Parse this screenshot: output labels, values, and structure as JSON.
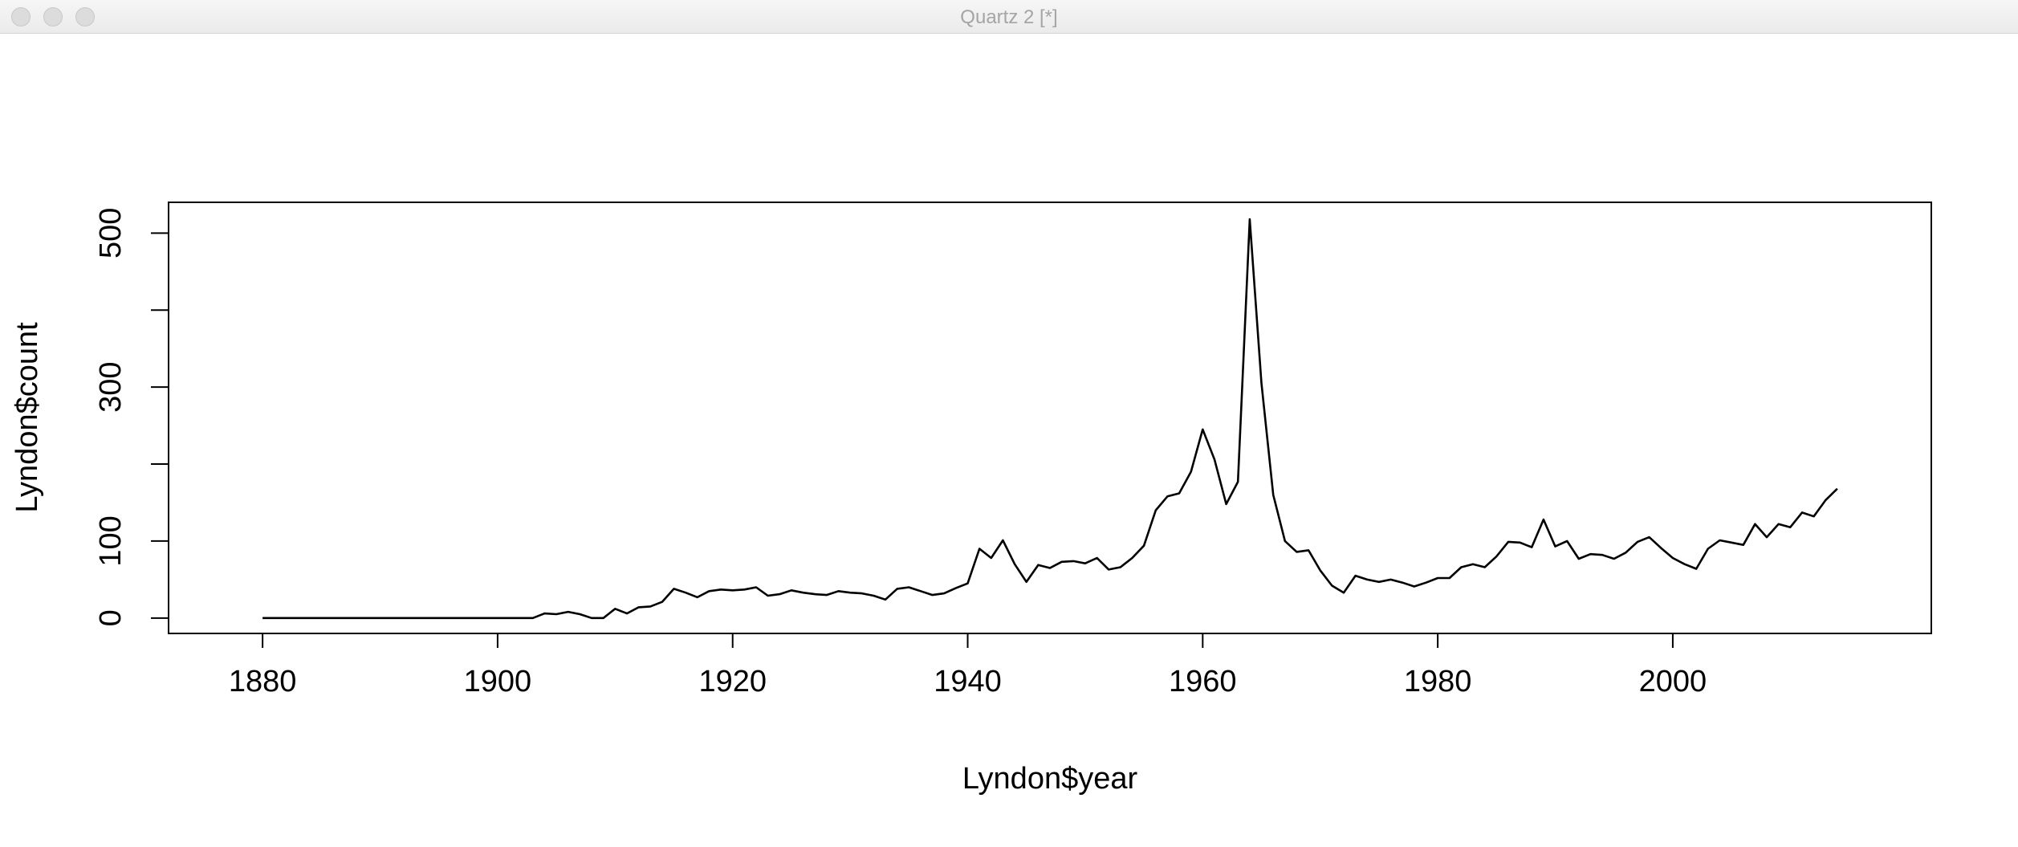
{
  "window": {
    "title": "Quartz 2 [*]"
  },
  "chart_data": {
    "type": "line",
    "xlabel": "Lyndon$year",
    "ylabel": "Lyndon$count",
    "xlim": [
      1872,
      2022
    ],
    "ylim": [
      -20,
      540
    ],
    "x_ticks": [
      1880,
      1900,
      1920,
      1940,
      1960,
      1980,
      2000
    ],
    "y_ticks": [
      0,
      100,
      200,
      300,
      400,
      500
    ],
    "y_tick_labels": [
      "0",
      "100",
      "",
      "300",
      "",
      "500"
    ],
    "grid": false,
    "series": [
      {
        "color": "#000000",
        "x": [
          1880,
          1881,
          1882,
          1883,
          1884,
          1885,
          1886,
          1887,
          1888,
          1889,
          1890,
          1891,
          1892,
          1893,
          1894,
          1895,
          1896,
          1897,
          1898,
          1899,
          1900,
          1901,
          1902,
          1903,
          1904,
          1905,
          1906,
          1907,
          1908,
          1909,
          1910,
          1911,
          1912,
          1913,
          1914,
          1915,
          1916,
          1917,
          1918,
          1919,
          1920,
          1921,
          1922,
          1923,
          1924,
          1925,
          1926,
          1927,
          1928,
          1929,
          1930,
          1931,
          1932,
          1933,
          1934,
          1935,
          1936,
          1937,
          1938,
          1939,
          1940,
          1941,
          1942,
          1943,
          1944,
          1945,
          1946,
          1947,
          1948,
          1949,
          1950,
          1951,
          1952,
          1953,
          1954,
          1955,
          1956,
          1957,
          1958,
          1959,
          1960,
          1961,
          1962,
          1963,
          1964,
          1965,
          1966,
          1967,
          1968,
          1969,
          1970,
          1971,
          1972,
          1973,
          1974,
          1975,
          1976,
          1977,
          1978,
          1979,
          1980,
          1981,
          1982,
          1983,
          1984,
          1985,
          1986,
          1987,
          1988,
          1989,
          1990,
          1991,
          1992,
          1993,
          1994,
          1995,
          1996,
          1997,
          1998,
          1999,
          2000,
          2001,
          2002,
          2003,
          2004,
          2005,
          2006,
          2007,
          2008,
          2009,
          2010,
          2011,
          2012,
          2013,
          2014
        ],
        "values": [
          0,
          0,
          0,
          0,
          0,
          0,
          0,
          0,
          0,
          0,
          0,
          0,
          0,
          0,
          0,
          0,
          0,
          0,
          0,
          0,
          0,
          0,
          0,
          0,
          6,
          5,
          8,
          5,
          0,
          0,
          12,
          6,
          14,
          15,
          21,
          38,
          33,
          27,
          35,
          37,
          36,
          37,
          40,
          29,
          31,
          36,
          33,
          31,
          30,
          35,
          33,
          32,
          29,
          24,
          38,
          40,
          35,
          30,
          32,
          39,
          45,
          90,
          78,
          101,
          70,
          47,
          69,
          65,
          73,
          74,
          71,
          78,
          63,
          66,
          78,
          94,
          140,
          158,
          162,
          190,
          245,
          206,
          148,
          177,
          518,
          305,
          160,
          100,
          86,
          88,
          62,
          42,
          33,
          55,
          50,
          47,
          50,
          46,
          41,
          46,
          52,
          52,
          66,
          70,
          66,
          80,
          99,
          98,
          92,
          128,
          93,
          100,
          77,
          83,
          82,
          77,
          85,
          99,
          105,
          91,
          78,
          70,
          64,
          90,
          101,
          98,
          95,
          122,
          105,
          122,
          118,
          137,
          132,
          153,
          168
        ]
      }
    ]
  }
}
